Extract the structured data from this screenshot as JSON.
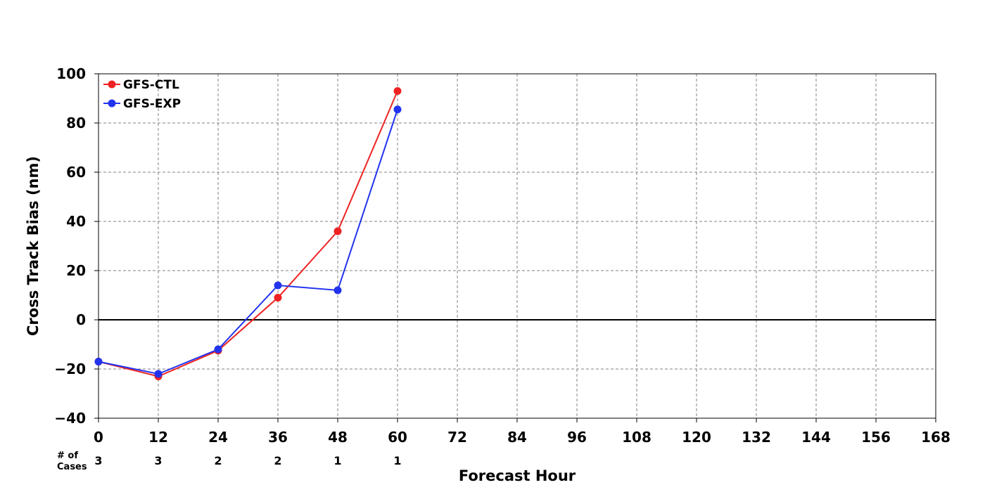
{
  "chart_data": {
    "type": "line",
    "title": "",
    "xlabel": "Forecast Hour",
    "ylabel": "Cross Track Bias (nm)",
    "xlim": [
      0,
      168
    ],
    "ylim": [
      -40,
      100
    ],
    "xticks": [
      0,
      12,
      24,
      36,
      48,
      60,
      72,
      84,
      96,
      108,
      120,
      132,
      144,
      156,
      168
    ],
    "yticks": [
      -40,
      -20,
      0,
      20,
      40,
      60,
      80,
      100
    ],
    "grid": true,
    "legend_position": "top-left",
    "series": [
      {
        "name": "GFS-CTL",
        "color": "#ee2222",
        "x": [
          0,
          12,
          24,
          36,
          48,
          60
        ],
        "y": [
          -17,
          -23,
          -12.5,
          9,
          36,
          93
        ]
      },
      {
        "name": "GFS-EXP",
        "color": "#2233ee",
        "x": [
          0,
          12,
          24,
          36,
          48,
          60
        ],
        "y": [
          -17,
          -22,
          -12,
          14,
          12,
          85.5
        ]
      }
    ],
    "cases": {
      "label_line1": "# of",
      "label_line2": "Cases",
      "x": [
        0,
        12,
        24,
        36,
        48,
        60
      ],
      "counts": [
        "3",
        "3",
        "2",
        "2",
        "1",
        "1"
      ]
    }
  }
}
